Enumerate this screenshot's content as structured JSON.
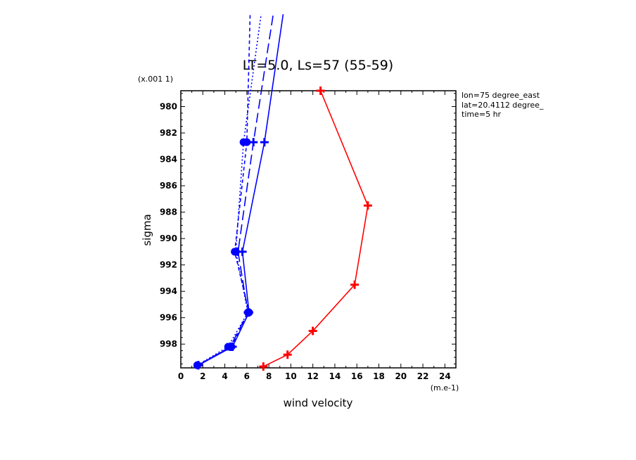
{
  "chart_data": {
    "type": "line",
    "title": "LT=5.0, Ls=57 (55-59)",
    "xlabel": "wind velocity",
    "ylabel": "sigma",
    "x_unit": "(m.e-1)",
    "y_unit": "(x.001 1)",
    "annotations": [
      "lon=75 degree_east",
      "lat=20.4112 degree_",
      "time=5 hr"
    ],
    "xlim": [
      0,
      25
    ],
    "ylim": [
      999.8,
      978.8
    ],
    "x_ticks": [
      0,
      2,
      4,
      6,
      8,
      10,
      12,
      14,
      16,
      18,
      20,
      22,
      24
    ],
    "y_ticks": [
      980,
      982,
      984,
      986,
      988,
      990,
      992,
      994,
      996,
      998
    ],
    "grid": false,
    "series": [
      {
        "style": "solid",
        "color": "#ff0000",
        "marker": "plus",
        "points": [
          [
            7.5,
            999.7
          ],
          [
            9.7,
            998.8
          ],
          [
            12.0,
            997.0
          ],
          [
            15.8,
            993.5
          ],
          [
            17.0,
            987.5
          ],
          [
            12.7,
            978.8
          ]
        ]
      },
      {
        "style": "solid",
        "color": "#0000ff",
        "marker": "plus",
        "points": [
          [
            1.6,
            999.6
          ],
          [
            4.7,
            998.2
          ],
          [
            6.2,
            995.6
          ],
          [
            5.6,
            991.0
          ],
          [
            7.6,
            982.7
          ],
          [
            9.3,
            973.0
          ]
        ]
      },
      {
        "style": "dashed",
        "color": "#0000ff",
        "marker": "plus",
        "points": [
          [
            1.6,
            999.6
          ],
          [
            4.5,
            998.2
          ],
          [
            6.1,
            995.6
          ],
          [
            5.2,
            991.0
          ],
          [
            6.6,
            982.7
          ],
          [
            8.4,
            973.0
          ]
        ]
      },
      {
        "style": "dotted",
        "color": "#0000ff",
        "marker": "circle",
        "points": [
          [
            1.5,
            999.6
          ],
          [
            4.3,
            998.2
          ],
          [
            6.1,
            995.6
          ],
          [
            5.0,
            991.0
          ],
          [
            5.7,
            982.7
          ],
          [
            7.3,
            973.0
          ]
        ]
      },
      {
        "style": "shortdash",
        "color": "#0000ff",
        "marker": "circle",
        "points": [
          [
            1.5,
            999.6
          ],
          [
            4.6,
            998.2
          ],
          [
            6.2,
            995.6
          ],
          [
            4.9,
            991.0
          ],
          [
            6.0,
            982.7
          ],
          [
            6.3,
            973.0
          ]
        ]
      }
    ]
  }
}
